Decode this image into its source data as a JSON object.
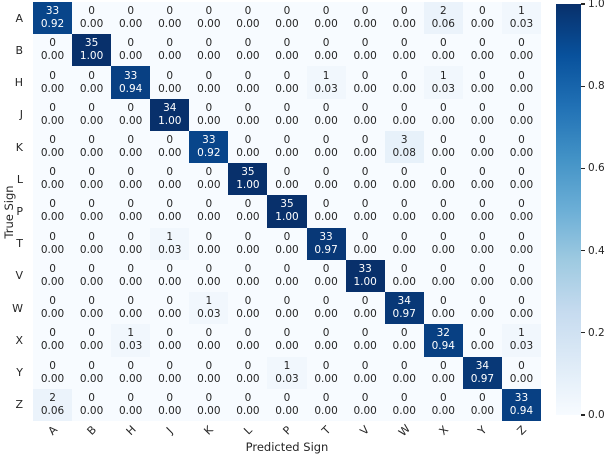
{
  "chart_data": {
    "type": "heatmap",
    "title": "",
    "xlabel": "Predicted Sign",
    "ylabel": "True Sign",
    "x_categories": [
      "A",
      "B",
      "H",
      "J",
      "K",
      "L",
      "P",
      "T",
      "V",
      "W",
      "X",
      "Y",
      "Z"
    ],
    "y_categories": [
      "A",
      "B",
      "H",
      "J",
      "K",
      "L",
      "P",
      "T",
      "V",
      "W",
      "X",
      "Y",
      "Z"
    ],
    "cell_annotation_format": "count newline proportion(2dp)",
    "counts": [
      [
        33,
        0,
        0,
        0,
        0,
        0,
        0,
        0,
        0,
        0,
        2,
        0,
        1
      ],
      [
        0,
        35,
        0,
        0,
        0,
        0,
        0,
        0,
        0,
        0,
        0,
        0,
        0
      ],
      [
        0,
        0,
        33,
        0,
        0,
        0,
        0,
        1,
        0,
        0,
        1,
        0,
        0
      ],
      [
        0,
        0,
        0,
        34,
        0,
        0,
        0,
        0,
        0,
        0,
        0,
        0,
        0
      ],
      [
        0,
        0,
        0,
        0,
        33,
        0,
        0,
        0,
        0,
        3,
        0,
        0,
        0
      ],
      [
        0,
        0,
        0,
        0,
        0,
        35,
        0,
        0,
        0,
        0,
        0,
        0,
        0
      ],
      [
        0,
        0,
        0,
        0,
        0,
        0,
        35,
        0,
        0,
        0,
        0,
        0,
        0
      ],
      [
        0,
        0,
        0,
        1,
        0,
        0,
        0,
        33,
        0,
        0,
        0,
        0,
        0
      ],
      [
        0,
        0,
        0,
        0,
        0,
        0,
        0,
        0,
        33,
        0,
        0,
        0,
        0
      ],
      [
        0,
        0,
        0,
        0,
        1,
        0,
        0,
        0,
        0,
        34,
        0,
        0,
        0
      ],
      [
        0,
        0,
        1,
        0,
        0,
        0,
        0,
        0,
        0,
        0,
        32,
        0,
        1
      ],
      [
        0,
        0,
        0,
        0,
        0,
        0,
        1,
        0,
        0,
        0,
        0,
        34,
        0
      ],
      [
        2,
        0,
        0,
        0,
        0,
        0,
        0,
        0,
        0,
        0,
        0,
        0,
        33
      ]
    ],
    "proportions": [
      [
        0.92,
        0,
        0,
        0,
        0,
        0,
        0,
        0,
        0,
        0,
        0.06,
        0,
        0.03
      ],
      [
        0,
        1,
        0,
        0,
        0,
        0,
        0,
        0,
        0,
        0,
        0,
        0,
        0
      ],
      [
        0,
        0,
        0.94,
        0,
        0,
        0,
        0,
        0.03,
        0,
        0,
        0.03,
        0,
        0
      ],
      [
        0,
        0,
        0,
        1,
        0,
        0,
        0,
        0,
        0,
        0,
        0,
        0,
        0
      ],
      [
        0,
        0,
        0,
        0,
        0.92,
        0,
        0,
        0,
        0,
        0.08,
        0,
        0,
        0
      ],
      [
        0,
        0,
        0,
        0,
        0,
        1,
        0,
        0,
        0,
        0,
        0,
        0,
        0
      ],
      [
        0,
        0,
        0,
        0,
        0,
        0,
        1,
        0,
        0,
        0,
        0,
        0,
        0
      ],
      [
        0,
        0,
        0,
        0.03,
        0,
        0,
        0,
        0.97,
        0,
        0,
        0,
        0,
        0
      ],
      [
        0,
        0,
        0,
        0,
        0,
        0,
        0,
        0,
        1,
        0,
        0,
        0,
        0
      ],
      [
        0,
        0,
        0,
        0,
        0.03,
        0,
        0,
        0,
        0,
        0.97,
        0,
        0,
        0
      ],
      [
        0,
        0,
        0.03,
        0,
        0,
        0,
        0,
        0,
        0,
        0,
        0.94,
        0,
        0.03
      ],
      [
        0,
        0,
        0,
        0,
        0,
        0,
        0.03,
        0,
        0,
        0,
        0,
        0.97,
        0
      ],
      [
        0.06,
        0,
        0,
        0,
        0,
        0,
        0,
        0,
        0,
        0,
        0,
        0,
        0.94
      ]
    ],
    "value_range": [
      0,
      1
    ],
    "colormap": "Blues",
    "colormap_anchors": [
      "#f7fbff",
      "#deebf7",
      "#c6dbef",
      "#9ecae1",
      "#6baed6",
      "#4292c6",
      "#2171b5",
      "#08519c",
      "#08306b"
    ],
    "colorbar_ticks": [
      1.0,
      0.8,
      0.6,
      0.4,
      0.2,
      0.0
    ],
    "colorbar_position": "right",
    "annotation_color_dark": "#262626",
    "annotation_color_light": "#ffffff",
    "legend": "none",
    "grid": false
  }
}
